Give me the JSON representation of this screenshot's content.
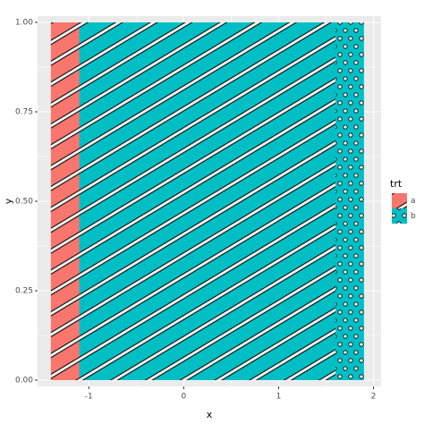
{
  "chart_data": {
    "type": "rect",
    "x_label": "x",
    "y_label": "y",
    "xlim": [
      -1.54,
      2.08
    ],
    "ylim": [
      -0.0175,
      1.0175
    ],
    "xticks": [
      -1,
      0,
      1,
      2
    ],
    "yticks": [
      {
        "value": 0,
        "label": "0.00"
      },
      {
        "value": 0.25,
        "label": "0.25"
      },
      {
        "value": 0.5,
        "label": "0.50"
      },
      {
        "value": 0.75,
        "label": "0.75"
      },
      {
        "value": 1,
        "label": "1.00"
      }
    ],
    "grid": true,
    "legend_title": "trt",
    "legend_position": "right",
    "series": [
      {
        "name": "a",
        "color": "#f8766d",
        "pattern": "stripe",
        "xmin": -1.4,
        "xmax": 1.6,
        "ymin": 0,
        "ymax": 1
      },
      {
        "name": "b",
        "color": "#00bfc4",
        "pattern": "circle",
        "xmin": -1.1,
        "xmax": 1.9,
        "ymin": 0,
        "ymax": 1
      }
    ]
  }
}
